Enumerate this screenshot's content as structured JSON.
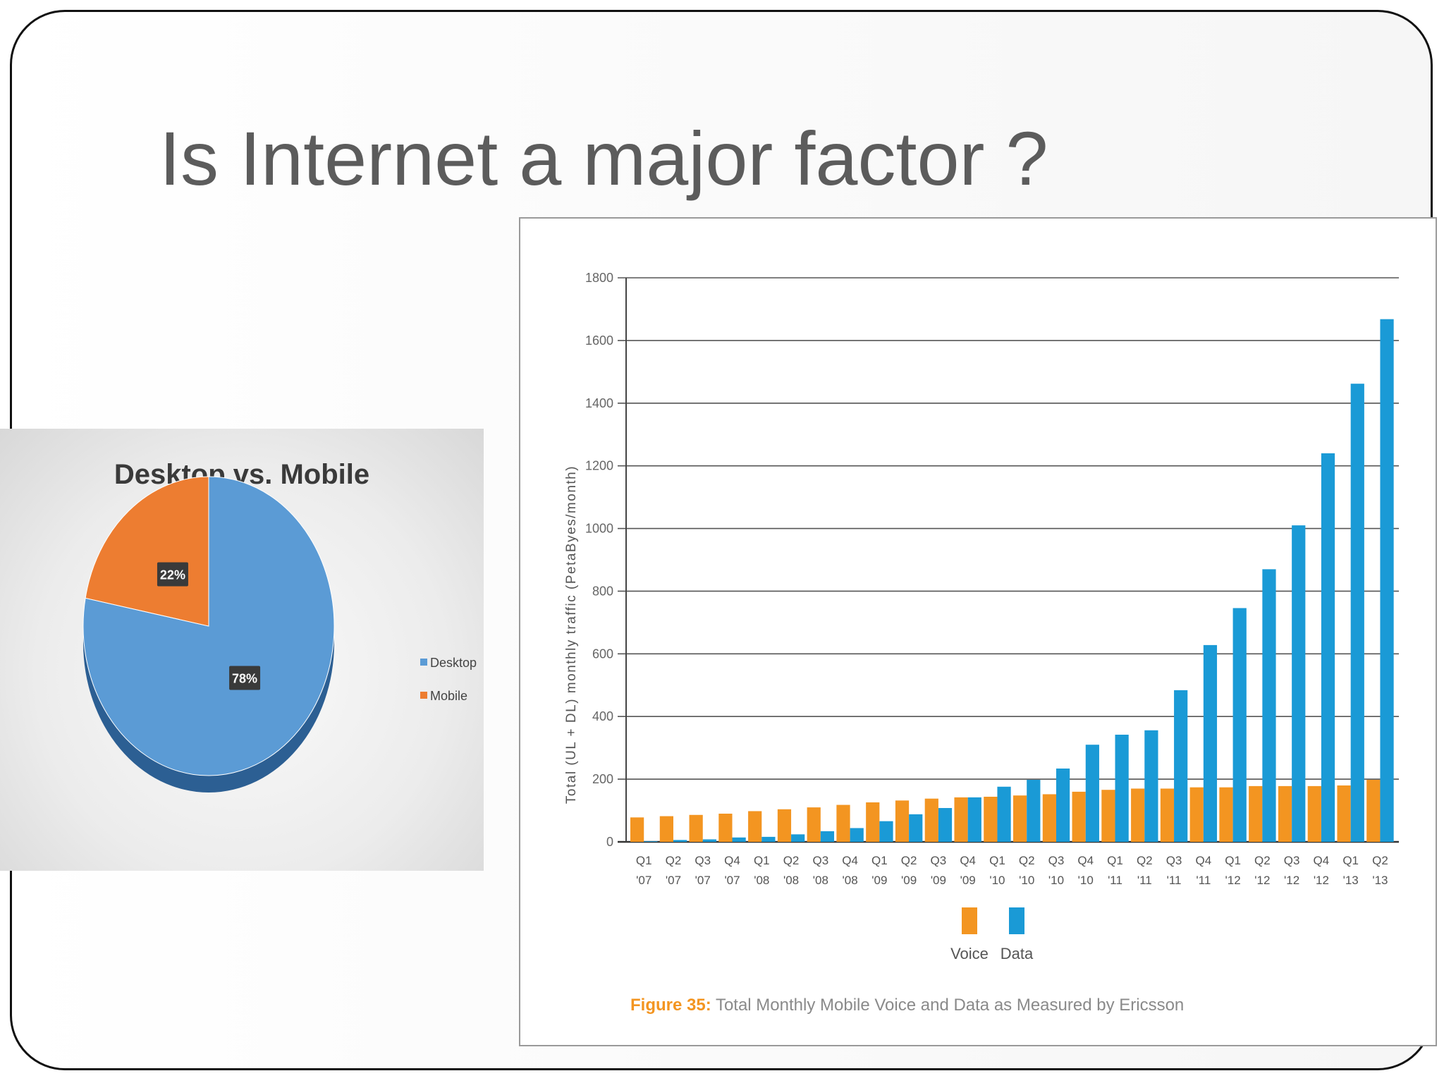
{
  "slide": {
    "title": "Is Internet a major factor ?"
  },
  "colors": {
    "desktop": "#5b9bd5",
    "desktop_dark": "#2c5f93",
    "mobile": "#ed7d31",
    "voice": "#f39521",
    "data": "#1a9ad6",
    "caption_accent": "#f39521",
    "grid": "#555555"
  },
  "chart_data": [
    {
      "type": "pie",
      "title": "Desktop vs. Mobile",
      "categories": [
        "Desktop",
        "Mobile"
      ],
      "values": [
        78,
        22
      ],
      "data_labels": [
        "78%",
        "22%"
      ],
      "legend": "right"
    },
    {
      "type": "bar",
      "title": "",
      "ylabel": "Total (UL + DL) monthly traffic (PetaByes/month)",
      "xlabel": "",
      "ylim": [
        0,
        1800
      ],
      "yticks": [
        0,
        200,
        400,
        600,
        800,
        1000,
        1200,
        1400,
        1600,
        1800
      ],
      "grid": true,
      "legend": "bottom",
      "categories": [
        [
          "Q1",
          "'07"
        ],
        [
          "Q2",
          "'07"
        ],
        [
          "Q3",
          "'07"
        ],
        [
          "Q4",
          "'07"
        ],
        [
          "Q1",
          "'08"
        ],
        [
          "Q2",
          "'08"
        ],
        [
          "Q3",
          "'08"
        ],
        [
          "Q4",
          "'08"
        ],
        [
          "Q1",
          "'09"
        ],
        [
          "Q2",
          "'09"
        ],
        [
          "Q3",
          "'09"
        ],
        [
          "Q4",
          "'09"
        ],
        [
          "Q1",
          "'10"
        ],
        [
          "Q2",
          "'10"
        ],
        [
          "Q3",
          "'10"
        ],
        [
          "Q4",
          "'10"
        ],
        [
          "Q1",
          "'11"
        ],
        [
          "Q2",
          "'11"
        ],
        [
          "Q3",
          "'11"
        ],
        [
          "Q4",
          "'11"
        ],
        [
          "Q1",
          "'12"
        ],
        [
          "Q2",
          "'12"
        ],
        [
          "Q3",
          "'12"
        ],
        [
          "Q4",
          "'12"
        ],
        [
          "Q1",
          "'13"
        ],
        [
          "Q2",
          "'13"
        ]
      ],
      "series": [
        {
          "name": "Voice",
          "values": [
            78,
            82,
            86,
            90,
            98,
            104,
            110,
            118,
            126,
            132,
            138,
            142,
            144,
            148,
            152,
            160,
            166,
            170,
            170,
            174,
            174,
            178,
            178,
            178,
            180,
            198
          ]
        },
        {
          "name": "Data",
          "values": [
            2,
            6,
            8,
            14,
            16,
            24,
            34,
            44,
            66,
            88,
            108,
            142,
            176,
            198,
            234,
            310,
            342,
            356,
            484,
            628,
            746,
            870,
            1010,
            1240,
            1462,
            1668
          ]
        }
      ],
      "caption": {
        "prefix": "Figure 35:",
        "text": " Total Monthly Mobile Voice and Data as Measured by Ericsson"
      }
    }
  ]
}
